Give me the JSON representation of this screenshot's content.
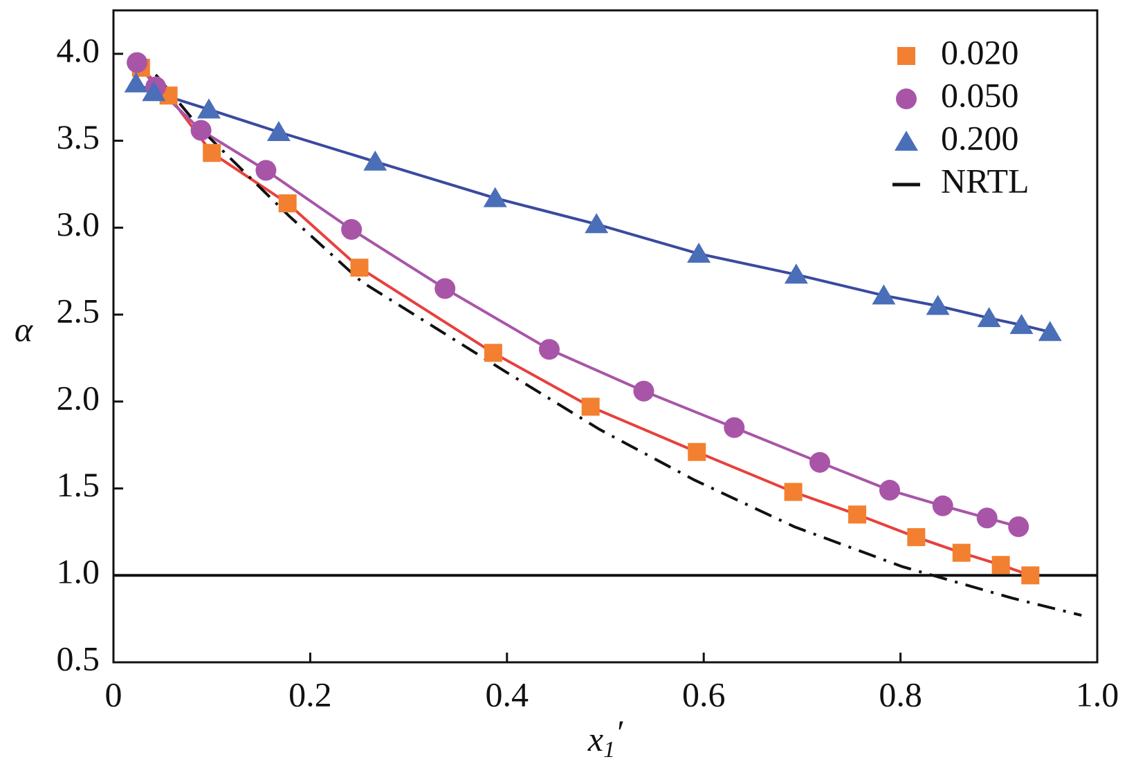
{
  "chart_data": {
    "type": "line",
    "xlabel": {
      "text": "x",
      "sub": "1",
      "prime": "′"
    },
    "ylabel": "α",
    "xlim": [
      0,
      1
    ],
    "ylim": [
      0.5,
      4.25
    ],
    "xticks": [
      0,
      0.2,
      0.4,
      0.6,
      0.8,
      {
        "value": 1,
        "label": "1.0"
      }
    ],
    "yticks": [
      0.5,
      {
        "value": 1,
        "label": "1.0"
      },
      1.5,
      {
        "value": 2,
        "label": "2.0"
      },
      2.5,
      {
        "value": 3,
        "label": "3.0"
      },
      3.5,
      {
        "value": 4,
        "label": "4.0"
      }
    ],
    "hline": 1,
    "series": [
      {
        "name": "0.020",
        "marker": "square",
        "color": "#f28030",
        "line_color": "#e8403c",
        "x": [
          0.028,
          0.056,
          0.1,
          0.177,
          0.25,
          0.386,
          0.485,
          0.593,
          0.691,
          0.756,
          0.816,
          0.862,
          0.902,
          0.932
        ],
        "values": [
          3.92,
          3.76,
          3.43,
          3.14,
          2.77,
          2.28,
          1.97,
          1.71,
          1.48,
          1.35,
          1.22,
          1.13,
          1.06,
          1.0
        ]
      },
      {
        "name": "0.050",
        "marker": "circle",
        "color": "#a855a8",
        "line_color": "#a855a8",
        "x": [
          0.024,
          0.043,
          0.089,
          0.155,
          0.242,
          0.337,
          0.443,
          0.539,
          0.631,
          0.718,
          0.789,
          0.843,
          0.888,
          0.92
        ],
        "values": [
          3.95,
          3.81,
          3.56,
          3.33,
          2.99,
          2.65,
          2.3,
          2.06,
          1.85,
          1.65,
          1.49,
          1.4,
          1.33,
          1.28
        ]
      },
      {
        "name": "0.200",
        "marker": "triangle",
        "color": "#4a6fb8",
        "line_color": "#3a4aa0",
        "x": [
          0.023,
          0.041,
          0.097,
          0.168,
          0.266,
          0.388,
          0.491,
          0.595,
          0.694,
          0.783,
          0.838,
          0.89,
          0.923,
          0.952
        ],
        "values": [
          3.83,
          3.78,
          3.68,
          3.55,
          3.38,
          3.17,
          3.02,
          2.85,
          2.73,
          2.61,
          2.55,
          2.48,
          2.44,
          2.4
        ]
      },
      {
        "name": "NRTL",
        "color": "#111111",
        "line_color": "#111111",
        "dash": "dashdot",
        "x": [
          0.043,
          0.09,
          0.178,
          0.252,
          0.399,
          0.494,
          0.59,
          0.692,
          0.802,
          0.913,
          0.984
        ],
        "values": [
          3.88,
          3.56,
          3.07,
          2.69,
          2.17,
          1.84,
          1.55,
          1.28,
          1.05,
          0.87,
          0.77
        ]
      }
    ]
  }
}
